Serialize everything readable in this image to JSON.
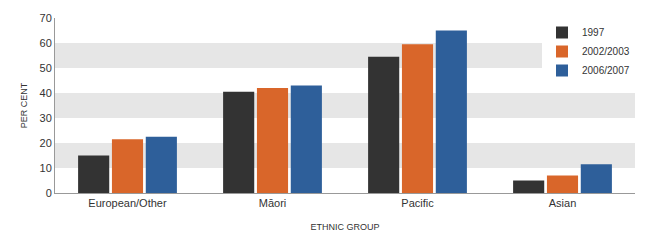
{
  "chart_data": {
    "type": "bar",
    "x_label": "ETHNIC GROUP",
    "y_label": "PER CENT",
    "categories": [
      "European/Other",
      "Māori",
      "Pacific",
      "Asian"
    ],
    "series": [
      {
        "name": "1997",
        "color": "#333333",
        "values": [
          15,
          40.5,
          54.5,
          5
        ]
      },
      {
        "name": "2002/2003",
        "color": "#d9662a",
        "values": [
          21.5,
          42,
          59.5,
          7
        ]
      },
      {
        "name": "2006/2007",
        "color": "#2e5f9a",
        "values": [
          22.5,
          43,
          65,
          11.5
        ]
      }
    ],
    "ylim": [
      0,
      70
    ],
    "yticks": [
      0,
      10,
      20,
      30,
      40,
      50,
      60,
      70
    ],
    "grid": true,
    "legend": "top-right"
  }
}
